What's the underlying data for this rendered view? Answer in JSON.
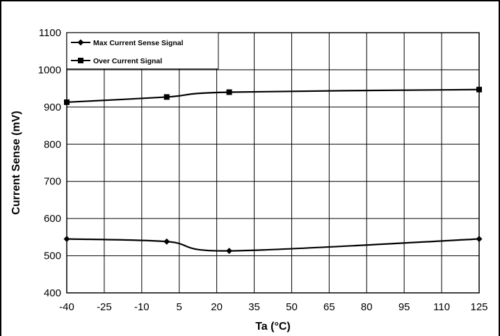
{
  "chart_data": {
    "type": "line",
    "xlabel": "Ta (°C)",
    "ylabel": "Current Sense (mV)",
    "xlim": [
      -40,
      125
    ],
    "ylim": [
      400,
      1100
    ],
    "x_ticks": [
      -40,
      -25,
      -10,
      5,
      20,
      35,
      50,
      65,
      80,
      95,
      110,
      125
    ],
    "y_ticks": [
      400,
      500,
      600,
      700,
      800,
      900,
      1000,
      1100
    ],
    "grid": true,
    "legend_position": "top-left",
    "series": [
      {
        "name": "Max Current Sense Signal",
        "marker": "diamond",
        "color": "#000000",
        "x": [
          -40,
          0,
          25,
          125
        ],
        "y": [
          545,
          538,
          513,
          545
        ]
      },
      {
        "name": "Over Current Signal",
        "marker": "square",
        "color": "#000000",
        "x": [
          -40,
          0,
          25,
          125
        ],
        "y": [
          913,
          927,
          940,
          947
        ]
      }
    ]
  }
}
